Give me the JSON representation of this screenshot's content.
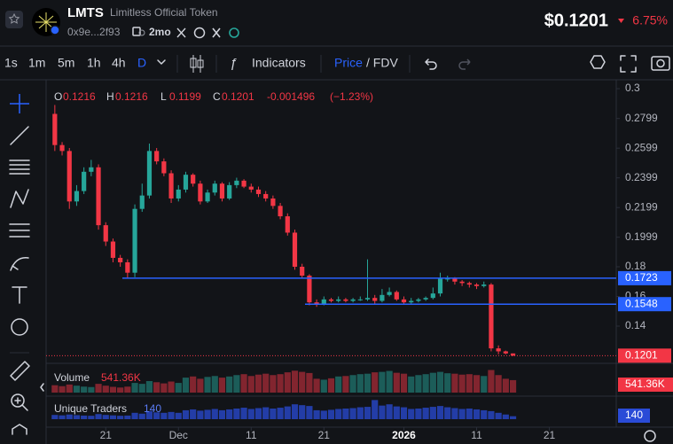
{
  "header": {
    "symbol": "LMTS",
    "name": "Limitless Official Token",
    "address": "0x9e...2f93",
    "age": "2mo",
    "price": "$0.1201",
    "change": "6.75%"
  },
  "toolbar": {
    "intervals": [
      "1s",
      "1m",
      "5m",
      "1h",
      "4h",
      "D"
    ],
    "indicators": "Indicators",
    "price": "Price",
    "fdv": "/ FDV"
  },
  "chart_data": {
    "type": "candlestick",
    "legend": {
      "labels": [
        "O",
        "H",
        "L",
        "C"
      ],
      "change": "-0.001496",
      "change_pct": "(−1.23%)"
    },
    "up_color": "#26a69a",
    "down_color": "#f23645",
    "open": [
      0.283,
      0.262,
      0.258,
      0.224,
      0.231,
      0.244,
      0.247,
      0.208,
      0.197,
      0.186,
      0.183,
      0.176,
      0.219,
      0.228,
      0.258,
      0.251,
      0.243,
      0.226,
      0.232,
      0.242,
      0.236,
      0.224,
      0.23,
      0.236,
      0.226,
      0.235,
      0.238,
      0.234,
      0.232,
      0.229,
      0.226,
      0.221,
      0.214,
      0.203,
      0.18,
      0.174,
      0.156,
      0.155,
      0.158,
      0.157,
      0.158,
      0.157,
      0.158,
      0.158,
      0.159,
      0.157,
      0.161,
      0.163,
      0.158,
      0.156,
      0.157,
      0.158,
      0.159,
      0.162,
      0.172,
      0.172,
      0.17,
      0.169,
      0.168,
      0.167,
      0.168,
      0.125,
      0.123,
      0.1216
    ],
    "high": [
      0.289,
      0.264,
      0.26,
      0.235,
      0.247,
      0.252,
      0.249,
      0.21,
      0.199,
      0.188,
      0.185,
      0.222,
      0.236,
      0.263,
      0.26,
      0.253,
      0.245,
      0.235,
      0.244,
      0.243,
      0.238,
      0.232,
      0.238,
      0.237,
      0.237,
      0.24,
      0.239,
      0.236,
      0.234,
      0.231,
      0.228,
      0.223,
      0.216,
      0.205,
      0.182,
      0.175,
      0.158,
      0.16,
      0.159,
      0.16,
      0.159,
      0.159,
      0.16,
      0.185,
      0.161,
      0.165,
      0.166,
      0.164,
      0.16,
      0.159,
      0.159,
      0.16,
      0.166,
      0.176,
      0.174,
      0.173,
      0.171,
      0.17,
      0.169,
      0.17,
      0.169,
      0.127,
      0.1235,
      0.1216
    ],
    "low": [
      0.258,
      0.255,
      0.219,
      0.221,
      0.229,
      0.241,
      0.205,
      0.194,
      0.183,
      0.18,
      0.172,
      0.173,
      0.217,
      0.226,
      0.249,
      0.241,
      0.223,
      0.224,
      0.23,
      0.234,
      0.222,
      0.223,
      0.228,
      0.224,
      0.225,
      0.233,
      0.233,
      0.23,
      0.227,
      0.224,
      0.219,
      0.212,
      0.201,
      0.178,
      0.172,
      0.154,
      0.153,
      0.154,
      0.156,
      0.156,
      0.156,
      0.156,
      0.157,
      0.157,
      0.155,
      0.156,
      0.16,
      0.157,
      0.155,
      0.155,
      0.156,
      0.157,
      0.158,
      0.16,
      0.17,
      0.168,
      0.167,
      0.166,
      0.165,
      0.166,
      0.123,
      0.121,
      0.121,
      0.1199
    ],
    "close": [
      0.262,
      0.258,
      0.224,
      0.231,
      0.244,
      0.247,
      0.208,
      0.197,
      0.186,
      0.183,
      0.176,
      0.219,
      0.228,
      0.258,
      0.251,
      0.243,
      0.226,
      0.232,
      0.242,
      0.236,
      0.224,
      0.23,
      0.236,
      0.226,
      0.235,
      0.238,
      0.234,
      0.232,
      0.229,
      0.226,
      0.221,
      0.214,
      0.203,
      0.18,
      0.174,
      0.156,
      0.155,
      0.158,
      0.157,
      0.158,
      0.157,
      0.158,
      0.158,
      0.159,
      0.157,
      0.161,
      0.163,
      0.158,
      0.156,
      0.157,
      0.158,
      0.159,
      0.162,
      0.172,
      0.172,
      0.17,
      0.169,
      0.168,
      0.167,
      0.168,
      0.125,
      0.123,
      0.1216,
      0.1201
    ],
    "ylim": [
      0.1179,
      0.3048
    ],
    "yticks": [
      0.3,
      0.2799,
      0.2599,
      0.2399,
      0.2199,
      0.1999,
      0.18,
      0.16,
      0.14
    ],
    "xlim": [
      -1.2,
      77.2
    ],
    "xticks": [
      {
        "value": 7,
        "label": "21"
      },
      {
        "value": 17,
        "label": "Dec"
      },
      {
        "value": 27,
        "label": "11"
      },
      {
        "value": 37,
        "label": "21"
      },
      {
        "value": 48,
        "label": "2026"
      },
      {
        "value": 58,
        "label": "11"
      },
      {
        "value": 68,
        "label": "21"
      }
    ],
    "levels": [
      0.1723,
      0.1548
    ],
    "level_color": "#2962ff",
    "volume": {
      "name": "Volume",
      "last_label": "541.36K",
      "ylim": [
        0,
        1000000
      ],
      "values": [
        320000,
        280000,
        350000,
        300000,
        260000,
        240000,
        380000,
        300000,
        250000,
        220000,
        260000,
        420000,
        380000,
        500000,
        450000,
        400000,
        480000,
        420000,
        650000,
        700000,
        600000,
        680000,
        720000,
        650000,
        700000,
        760000,
        800000,
        720000,
        780000,
        820000,
        760000,
        800000,
        880000,
        950000,
        900000,
        850000,
        600000,
        560000,
        620000,
        700000,
        720000,
        760000,
        800000,
        820000,
        880000,
        900000,
        940000,
        860000,
        820000,
        700000,
        760000,
        800000,
        860000,
        900000,
        840000,
        820000,
        780000,
        800000,
        760000,
        720000,
        980000,
        760000,
        600000,
        541360
      ]
    },
    "traders": {
      "name": "Unique Traders",
      "color": "#2a4bd7",
      "ylim": [
        0,
        1000
      ],
      "values": [
        200,
        180,
        220,
        190,
        170,
        160,
        240,
        200,
        180,
        160,
        170,
        300,
        260,
        380,
        320,
        300,
        340,
        300,
        420,
        460,
        400,
        440,
        480,
        420,
        460,
        500,
        540,
        480,
        520,
        560,
        500,
        540,
        600,
        700,
        660,
        620,
        420,
        400,
        440,
        480,
        500,
        520,
        560,
        580,
        900,
        640,
        700,
        600,
        560,
        480,
        500,
        540,
        580,
        620,
        560,
        520,
        480,
        500,
        460,
        420,
        380,
        300,
        220,
        140
      ]
    }
  }
}
